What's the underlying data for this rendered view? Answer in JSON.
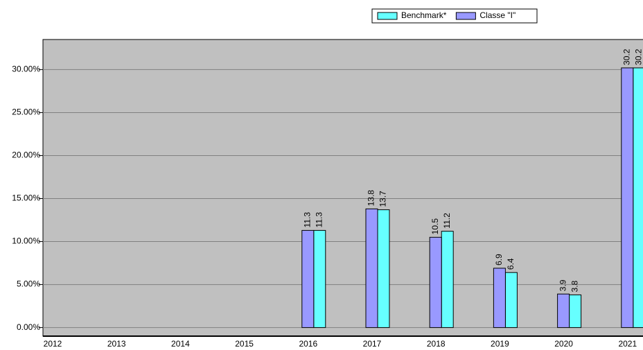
{
  "chart_data": {
    "type": "bar",
    "categories": [
      "2012",
      "2013",
      "2014",
      "2015",
      "2016",
      "2017",
      "2018",
      "2019",
      "2020",
      "2021"
    ],
    "series": [
      {
        "name": "Benchmark*",
        "color": "#66ffff",
        "values": [
          null,
          null,
          null,
          null,
          11.3,
          13.7,
          11.2,
          6.4,
          3.8,
          30.2
        ]
      },
      {
        "name": "Classe \"I\"",
        "color": "#9999ff",
        "values": [
          null,
          null,
          null,
          null,
          11.3,
          13.8,
          10.5,
          6.9,
          3.9,
          30.2
        ]
      }
    ],
    "ylim": [
      -1,
      33.5
    ],
    "yticks": [
      {
        "value": 0,
        "label": "0.00%"
      },
      {
        "value": 5,
        "label": "5.00%"
      },
      {
        "value": 10,
        "label": "10.00%"
      },
      {
        "value": 15,
        "label": "15.00%"
      },
      {
        "value": 20,
        "label": "20.00%"
      },
      {
        "value": 25,
        "label": "25.00%"
      },
      {
        "value": 30,
        "label": "30.00%"
      }
    ],
    "grid": true,
    "legend": "top"
  }
}
